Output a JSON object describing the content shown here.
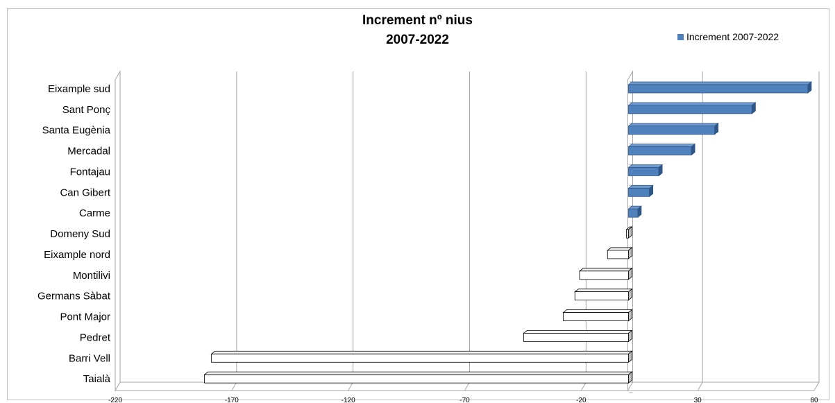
{
  "colors": {
    "positive_fill": "#4f81bd",
    "positive_top": "#6f9ad0",
    "positive_side": "#2f5686",
    "negative_fill": "#ffffff",
    "negative_top": "#f2f2f2",
    "negative_side": "#bfbfbf",
    "edge": "#000000",
    "grid": "#a6a6a6"
  },
  "chart_data": {
    "type": "bar",
    "orientation": "horizontal",
    "style": "3d-clustered-bar",
    "title_lines": [
      "Increment nº nius",
      "2007-2022"
    ],
    "legend": {
      "position": "top-right"
    },
    "grid": {
      "vertical": true
    },
    "xlim": [
      -220,
      80
    ],
    "xticks": [
      -220,
      -170,
      -120,
      -70,
      -20,
      30,
      80
    ],
    "categories": [
      "Eixample sud",
      "Sant Ponç",
      "Santa Eugènia",
      "Mercadal",
      "Fontajau",
      "Can Gibert",
      "Carme",
      "Domeny Sud",
      "Eixample nord",
      "Montilivi",
      "Germans Sàbat",
      "Pont Major",
      "Pedret",
      "Barri Vell",
      "Taialà"
    ],
    "series": [
      {
        "name": "Increment 2007-2022",
        "values": [
          77,
          53,
          37,
          27,
          13,
          9,
          4,
          0,
          -9,
          -21,
          -23,
          -28,
          -45,
          -179,
          -182
        ]
      }
    ]
  }
}
